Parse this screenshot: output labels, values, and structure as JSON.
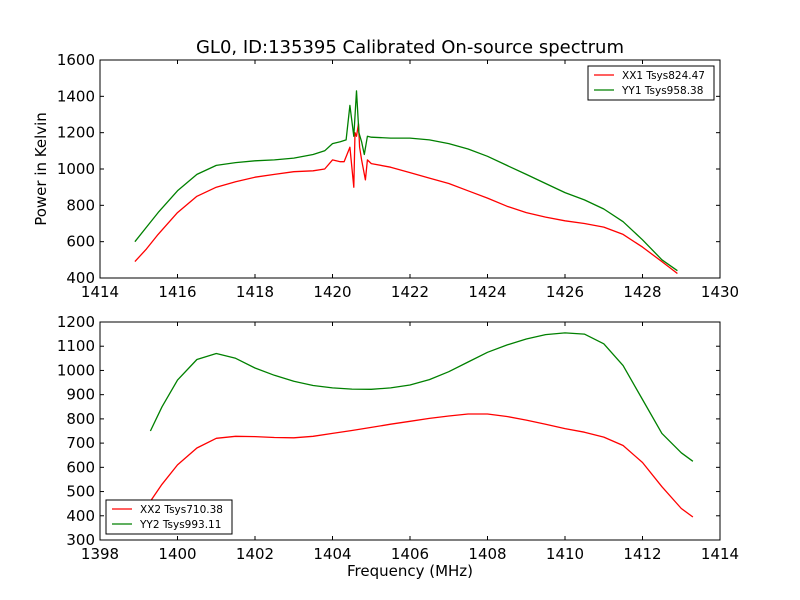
{
  "figure": {
    "title": "GL0, ID:135395 Calibrated On-source spectrum",
    "xlabel": "Frequency (MHz)",
    "ylabel": "Power in Kelvin"
  },
  "chart_data": [
    {
      "type": "line",
      "title": "GL0, ID:135395 Calibrated On-source spectrum",
      "xlabel": "",
      "ylabel": "Power in Kelvin",
      "xlim": [
        1414,
        1430
      ],
      "ylim": [
        400,
        1600
      ],
      "xticks": [
        1414,
        1416,
        1418,
        1420,
        1422,
        1424,
        1426,
        1428,
        1430
      ],
      "yticks": [
        400,
        600,
        800,
        1000,
        1200,
        1400,
        1600
      ],
      "legend_position": "top-right",
      "series": [
        {
          "name": "XX1 Tsys824.47",
          "color": "#ff0000",
          "x": [
            1414.9,
            1415.2,
            1415.5,
            1416.0,
            1416.5,
            1417.0,
            1417.5,
            1418.0,
            1418.5,
            1419.0,
            1419.5,
            1419.8,
            1420.0,
            1420.2,
            1420.3,
            1420.45,
            1420.55,
            1420.58,
            1420.62,
            1420.67,
            1420.7,
            1420.75,
            1420.85,
            1420.9,
            1421.0,
            1421.5,
            1422.0,
            1422.5,
            1423.0,
            1423.5,
            1424.0,
            1424.5,
            1425.0,
            1425.5,
            1426.0,
            1426.5,
            1427.0,
            1427.5,
            1428.0,
            1428.5,
            1428.9
          ],
          "y": [
            490,
            560,
            640,
            760,
            850,
            900,
            930,
            955,
            970,
            985,
            990,
            1000,
            1050,
            1040,
            1040,
            1120,
            900,
            1200,
            1180,
            1250,
            1120,
            1050,
            940,
            1050,
            1030,
            1010,
            980,
            950,
            920,
            880,
            840,
            795,
            760,
            735,
            715,
            700,
            680,
            640,
            570,
            490,
            425
          ]
        },
        {
          "name": "YY1 Tsys958.38",
          "color": "#008000",
          "x": [
            1414.9,
            1415.2,
            1415.5,
            1416.0,
            1416.5,
            1417.0,
            1417.5,
            1418.0,
            1418.5,
            1419.0,
            1419.5,
            1419.8,
            1420.0,
            1420.2,
            1420.35,
            1420.45,
            1420.55,
            1420.62,
            1420.68,
            1420.75,
            1420.82,
            1420.9,
            1421.0,
            1421.5,
            1422.0,
            1422.5,
            1423.0,
            1423.5,
            1424.0,
            1424.5,
            1425.0,
            1425.5,
            1426.0,
            1426.5,
            1427.0,
            1427.5,
            1428.0,
            1428.5,
            1428.9
          ],
          "y": [
            600,
            680,
            760,
            880,
            970,
            1020,
            1035,
            1045,
            1050,
            1060,
            1080,
            1100,
            1140,
            1150,
            1160,
            1350,
            1180,
            1430,
            1200,
            1150,
            1080,
            1180,
            1175,
            1170,
            1170,
            1160,
            1140,
            1110,
            1070,
            1020,
            970,
            920,
            870,
            830,
            780,
            710,
            610,
            500,
            440
          ]
        }
      ]
    },
    {
      "type": "line",
      "title": "",
      "xlabel": "Frequency (MHz)",
      "ylabel": "",
      "xlim": [
        1398,
        1414
      ],
      "ylim": [
        300,
        1200
      ],
      "xticks": [
        1398,
        1400,
        1402,
        1404,
        1406,
        1408,
        1410,
        1412,
        1414
      ],
      "yticks": [
        300,
        400,
        500,
        600,
        700,
        800,
        900,
        1000,
        1100,
        1200
      ],
      "legend_position": "bottom-left",
      "series": [
        {
          "name": "XX2 Tsys710.38",
          "color": "#ff0000",
          "x": [
            1399.3,
            1399.6,
            1400.0,
            1400.5,
            1401.0,
            1401.5,
            1402.0,
            1402.5,
            1403.0,
            1403.5,
            1404.0,
            1404.5,
            1405.0,
            1405.5,
            1406.0,
            1406.5,
            1407.0,
            1407.5,
            1408.0,
            1408.5,
            1409.0,
            1409.5,
            1410.0,
            1410.5,
            1411.0,
            1411.5,
            1412.0,
            1412.5,
            1413.0,
            1413.3
          ],
          "y": [
            460,
            530,
            610,
            680,
            720,
            728,
            727,
            723,
            722,
            728,
            740,
            752,
            765,
            778,
            790,
            802,
            812,
            820,
            820,
            810,
            795,
            778,
            760,
            745,
            725,
            690,
            620,
            520,
            430,
            395
          ]
        },
        {
          "name": "YY2 Tsys993.11",
          "color": "#008000",
          "x": [
            1399.3,
            1399.6,
            1400.0,
            1400.5,
            1401.0,
            1401.5,
            1402.0,
            1402.5,
            1403.0,
            1403.5,
            1404.0,
            1404.5,
            1405.0,
            1405.5,
            1406.0,
            1406.5,
            1407.0,
            1407.5,
            1408.0,
            1408.5,
            1409.0,
            1409.5,
            1410.0,
            1410.5,
            1411.0,
            1411.5,
            1412.0,
            1412.5,
            1413.0,
            1413.3
          ],
          "y": [
            750,
            850,
            960,
            1045,
            1070,
            1050,
            1010,
            980,
            955,
            938,
            928,
            923,
            922,
            928,
            940,
            962,
            995,
            1035,
            1075,
            1105,
            1130,
            1148,
            1155,
            1150,
            1110,
            1020,
            880,
            740,
            660,
            625
          ]
        }
      ]
    }
  ]
}
